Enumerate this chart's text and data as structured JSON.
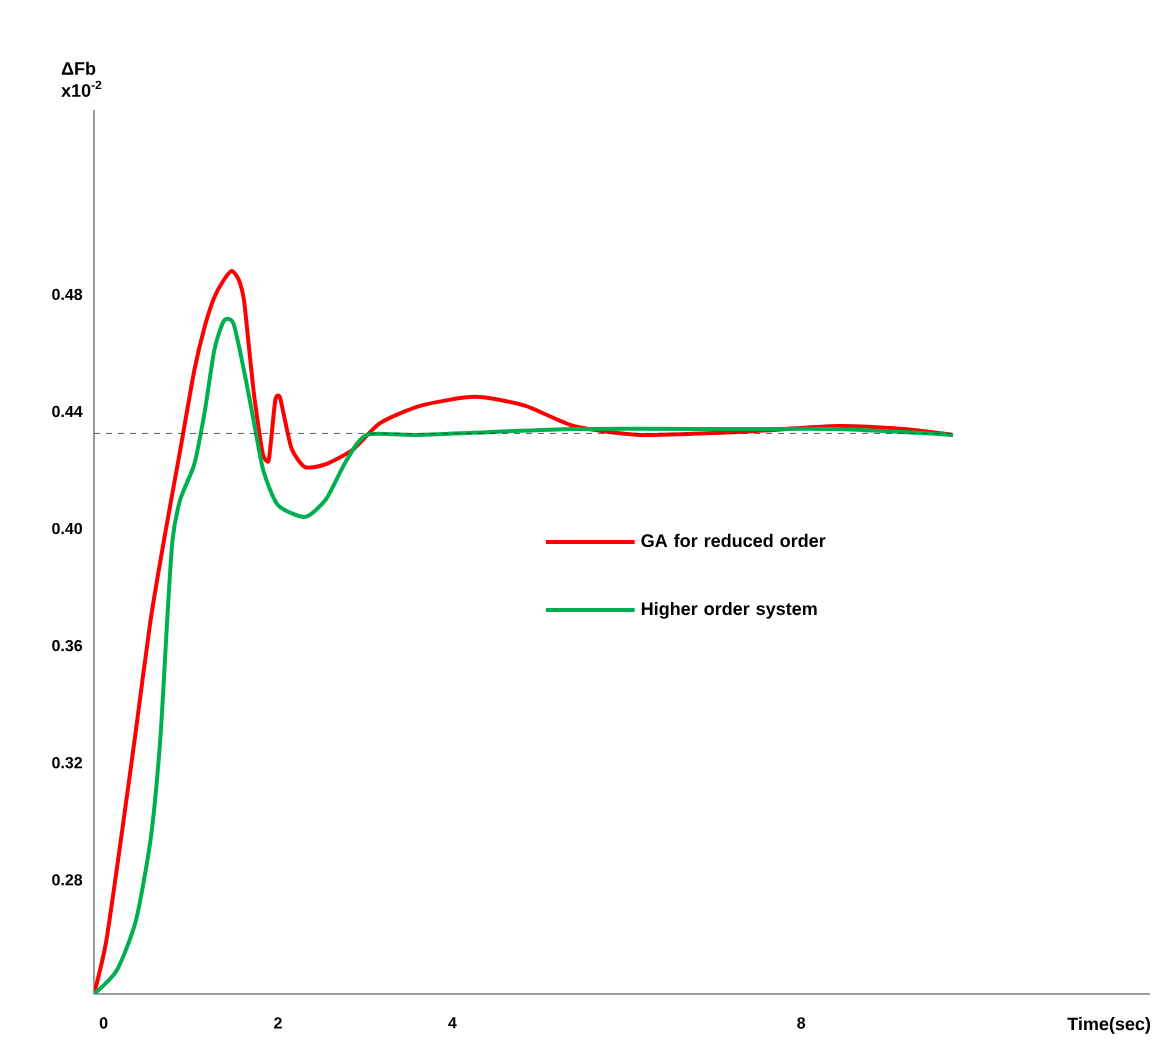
{
  "chart_data": {
    "type": "line",
    "xlabel": "Time(sec)",
    "ylabel": "ΔFb x10$^{-2}$",
    "xlim": [
      -0.11,
      12
    ],
    "ylim": [
      0.241,
      0.543
    ],
    "xticks": [
      0,
      2,
      4,
      8
    ],
    "yticks": [
      0.28,
      0.32,
      0.36,
      {
        "value": 0.4,
        "label": "0.40"
      },
      0.44,
      0.48
    ],
    "legend": "right",
    "grid": false,
    "marker": "none",
    "line_style": "solid",
    "ref_lines": [
      {
        "axis": "y",
        "value": 0.4325,
        "color": "#333333",
        "line_style": "dashed"
      }
    ],
    "series": [
      {
        "name": "GA for reduced order",
        "color": "#ff0000",
        "x": [
          -0.11,
          0.03,
          0.2,
          0.37,
          0.54,
          0.71,
          0.88,
          1.04,
          1.16,
          1.27,
          1.38,
          1.47,
          1.55,
          1.61,
          1.66,
          1.72,
          1.78,
          1.83,
          1.89,
          1.92,
          1.97,
          2.02,
          2.08,
          2.16,
          2.31,
          2.55,
          2.86,
          3.17,
          3.64,
          4.26,
          4.83,
          5.4,
          6.15,
          7.28,
          8.42,
          9.17,
          9.74
        ],
        "values": [
          0.241,
          0.259,
          0.294,
          0.331,
          0.369,
          0.399,
          0.427,
          0.454,
          0.469,
          0.479,
          0.485,
          0.488,
          0.485,
          0.478,
          0.464,
          0.447,
          0.434,
          0.425,
          0.423,
          0.43,
          0.444,
          0.445,
          0.437,
          0.427,
          0.421,
          0.422,
          0.427,
          0.436,
          0.442,
          0.445,
          0.442,
          0.435,
          0.432,
          0.433,
          0.435,
          0.434,
          0.432
        ]
      },
      {
        "name": "Higher order system",
        "color": "#00b050",
        "x": [
          -0.11,
          0.15,
          0.37,
          0.54,
          0.65,
          0.73,
          0.79,
          0.88,
          1.04,
          1.16,
          1.27,
          1.38,
          1.49,
          1.61,
          1.72,
          1.83,
          2.0,
          2.31,
          2.55,
          2.78,
          3.02,
          3.64,
          5.4,
          7.28,
          8.42,
          9.74
        ],
        "values": [
          0.241,
          0.249,
          0.266,
          0.294,
          0.328,
          0.369,
          0.396,
          0.41,
          0.422,
          0.44,
          0.461,
          0.471,
          0.47,
          0.454,
          0.437,
          0.42,
          0.408,
          0.404,
          0.41,
          0.423,
          0.432,
          0.432,
          0.434,
          0.434,
          0.434,
          0.432
        ]
      }
    ]
  }
}
